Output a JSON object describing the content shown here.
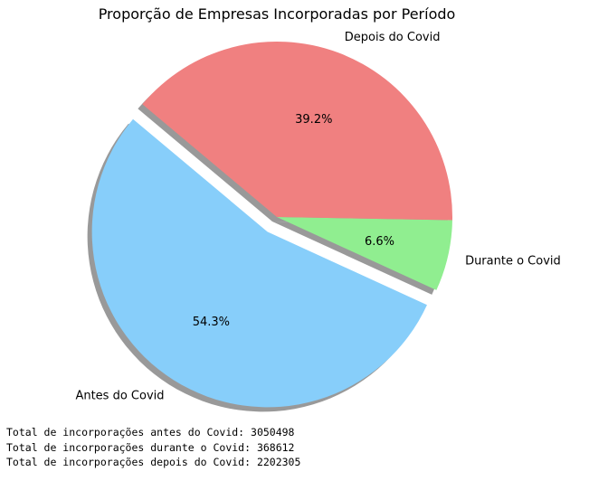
{
  "chart_data": {
    "type": "pie",
    "title": "Proporção de Empresas Incorporadas por Período",
    "slices": [
      {
        "label": "Antes do Covid",
        "value": 3050498,
        "pct_label": "54.3%",
        "color": "#87CEFA",
        "explode": 0.1
      },
      {
        "label": "Durante o Covid",
        "value": 368612,
        "pct_label": "6.6%",
        "color": "#90EE90",
        "explode": 0
      },
      {
        "label": "Depois do Covid",
        "value": 2202305,
        "pct_label": "39.2%",
        "color": "#F08080",
        "explode": 0
      }
    ],
    "start_angle_deg": 140,
    "shadow": true
  },
  "output": {
    "lines": [
      "Total de incorporações antes do Covid: 3050498",
      "Total de incorporações durante o Covid: 368612",
      "Total de incorporações depois do Covid: 2202305"
    ]
  }
}
